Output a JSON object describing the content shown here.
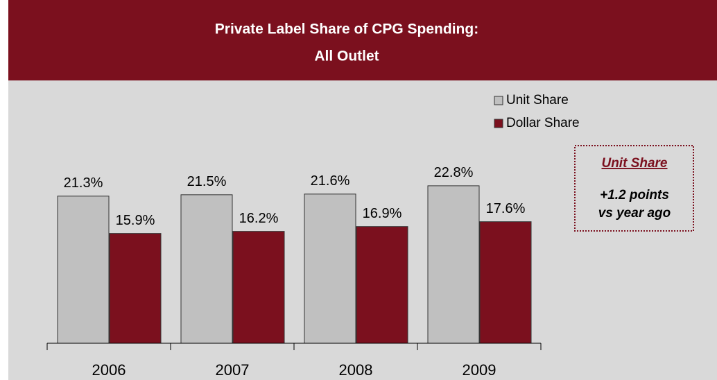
{
  "chart_data": {
    "type": "bar",
    "title": "Private Label Share of CPG Spending:",
    "subtitle": "All Outlet",
    "categories": [
      "2006",
      "2007",
      "2008",
      "2009"
    ],
    "series": [
      {
        "name": "Unit Share",
        "color": "#c0c0c0",
        "values": [
          21.3,
          21.5,
          21.6,
          22.8
        ],
        "value_labels": [
          "21.3%",
          "21.5%",
          "21.6%",
          "22.8%"
        ]
      },
      {
        "name": "Dollar Share",
        "color": "#7b101e",
        "values": [
          15.9,
          16.2,
          16.9,
          17.6
        ],
        "value_labels": [
          "15.9%",
          "16.2%",
          "16.9%",
          "17.6%"
        ]
      }
    ],
    "ylim": [
      0,
      25
    ],
    "legend": "top-right",
    "annotation": {
      "title": "Unit Share",
      "lines": [
        "+1.2 points",
        "vs year ago"
      ]
    }
  }
}
